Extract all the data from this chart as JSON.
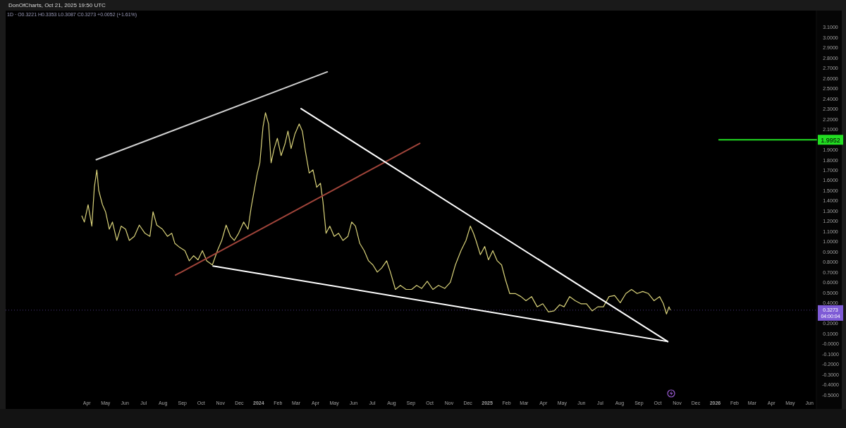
{
  "chart_data": {
    "type": "line",
    "title": "1D · O0.3221 H0.3353 L0.3087 C0.3273 +0.0052 (+1.61%)",
    "subtitle": "DonOfCharts, Oct 21, 2025 19:50 UTC",
    "annotations": [
      "04:00:04"
    ],
    "xlim": [
      "2022-11-22",
      "2026-06-12"
    ],
    "xticks": [
      {
        "value": "2023-04-01",
        "label": "Apr"
      },
      {
        "value": "2023-05-01",
        "label": "May"
      },
      {
        "value": "2023-06-01",
        "label": "Jun"
      },
      {
        "value": "2023-07-01",
        "label": "Jul"
      },
      {
        "value": "2023-08-01",
        "label": "Aug"
      },
      {
        "value": "2023-09-01",
        "label": "Sep"
      },
      {
        "value": "2023-10-01",
        "label": "Oct"
      },
      {
        "value": "2023-11-01",
        "label": "Nov"
      },
      {
        "value": "2023-12-01",
        "label": "Dec"
      },
      {
        "value": "2024-01-01",
        "label": "2024"
      },
      {
        "value": "2024-02-01",
        "label": "Feb"
      },
      {
        "value": "2024-03-01",
        "label": "Mar"
      },
      {
        "value": "2024-04-01",
        "label": "Apr"
      },
      {
        "value": "2024-05-01",
        "label": "May"
      },
      {
        "value": "2024-06-01",
        "label": "Jun"
      },
      {
        "value": "2024-07-01",
        "label": "Jul"
      },
      {
        "value": "2024-08-01",
        "label": "Aug"
      },
      {
        "value": "2024-09-01",
        "label": "Sep"
      },
      {
        "value": "2024-10-01",
        "label": "Oct"
      },
      {
        "value": "2024-11-01",
        "label": "Nov"
      },
      {
        "value": "2024-12-01",
        "label": "Dec"
      },
      {
        "value": "2025-01-01",
        "label": "2025"
      },
      {
        "value": "2025-02-01",
        "label": "Feb"
      },
      {
        "value": "2025-03-01",
        "label": "Mar"
      },
      {
        "value": "2025-04-01",
        "label": "Apr"
      },
      {
        "value": "2025-05-01",
        "label": "May"
      },
      {
        "value": "2025-06-01",
        "label": "Jun"
      },
      {
        "value": "2025-07-01",
        "label": "Jul"
      },
      {
        "value": "2025-08-01",
        "label": "Aug"
      },
      {
        "value": "2025-09-01",
        "label": "Sep"
      },
      {
        "value": "2025-10-01",
        "label": "Oct"
      },
      {
        "value": "2025-11-01",
        "label": "Nov"
      },
      {
        "value": "2025-12-01",
        "label": "Dec"
      },
      {
        "value": "2026-01-01",
        "label": "2026"
      },
      {
        "value": "2026-02-01",
        "label": "Feb"
      },
      {
        "value": "2026-03-01",
        "label": "Mar"
      },
      {
        "value": "2026-04-01",
        "label": "Apr"
      },
      {
        "value": "2026-05-01",
        "label": "May"
      },
      {
        "value": "2026-06-01",
        "label": "Jun"
      }
    ],
    "ylim": [
      -0.64,
      3.26
    ],
    "yticks": [
      {
        "value": 3.1,
        "label": "3.1000"
      },
      {
        "value": 3.0,
        "label": "3.0000"
      },
      {
        "value": 2.9,
        "label": "2.9000"
      },
      {
        "value": 2.8,
        "label": "2.8000"
      },
      {
        "value": 2.7,
        "label": "2.7000"
      },
      {
        "value": 2.6,
        "label": "2.6000"
      },
      {
        "value": 2.5,
        "label": "2.5000"
      },
      {
        "value": 2.4,
        "label": "2.4000"
      },
      {
        "value": 2.3,
        "label": "2.3000"
      },
      {
        "value": 2.2,
        "label": "2.2000"
      },
      {
        "value": 2.1,
        "label": "2.1000"
      },
      {
        "value": 1.9,
        "label": "1.9000"
      },
      {
        "value": 1.8,
        "label": "1.8000"
      },
      {
        "value": 1.7,
        "label": "1.7000"
      },
      {
        "value": 1.6,
        "label": "1.6000"
      },
      {
        "value": 1.5,
        "label": "1.5000"
      },
      {
        "value": 1.4,
        "label": "1.4000"
      },
      {
        "value": 1.3,
        "label": "1.3000"
      },
      {
        "value": 1.2,
        "label": "1.2000"
      },
      {
        "value": 1.1,
        "label": "1.1000"
      },
      {
        "value": 1.0,
        "label": "1.0000"
      },
      {
        "value": 0.9,
        "label": "0.9000"
      },
      {
        "value": 0.8,
        "label": "0.8000"
      },
      {
        "value": 0.7,
        "label": "0.7000"
      },
      {
        "value": 0.6,
        "label": "0.6000"
      },
      {
        "value": 0.5,
        "label": "0.5000"
      },
      {
        "value": 0.4,
        "label": "0.4000"
      },
      {
        "value": 0.2,
        "label": "0.2000"
      },
      {
        "value": 0.1,
        "label": "0.1000"
      },
      {
        "value": 0,
        "label": "-0.0000"
      },
      {
        "value": -0.1,
        "label": "-0.1000"
      },
      {
        "value": -0.2,
        "label": "-0.2000"
      },
      {
        "value": -0.3,
        "label": "-0.3000"
      },
      {
        "value": -0.4,
        "label": "-0.4000"
      },
      {
        "value": -0.5,
        "label": "-0.5000"
      }
    ],
    "ref_lines": [
      {
        "axis": "y",
        "value": 0.3273,
        "label": "0.3273",
        "color": "#7e5bd6",
        "line_style": "dotted"
      }
    ],
    "series": [
      {
        "color": "#d9d27a",
        "x": [
          "2023-03-24",
          "2023-03-28",
          "2023-04-03",
          "2023-04-09",
          "2023-04-13",
          "2023-04-17",
          "2023-04-20",
          "2023-04-26",
          "2023-05-01",
          "2023-05-07",
          "2023-05-12",
          "2023-05-19",
          "2023-05-26",
          "2023-06-02",
          "2023-06-08",
          "2023-06-16",
          "2023-06-24",
          "2023-07-03",
          "2023-07-11",
          "2023-07-16",
          "2023-07-22",
          "2023-07-31",
          "2023-08-08",
          "2023-08-15",
          "2023-08-20",
          "2023-08-28",
          "2023-09-05",
          "2023-09-12",
          "2023-09-19",
          "2023-09-26",
          "2023-10-03",
          "2023-10-10",
          "2023-10-19",
          "2023-10-27",
          "2023-11-03",
          "2023-11-10",
          "2023-11-17",
          "2023-11-23",
          "2023-11-30",
          "2023-12-08",
          "2023-12-15",
          "2023-12-20",
          "2023-12-25",
          "2023-12-30",
          "2024-01-03",
          "2024-01-08",
          "2024-01-12",
          "2024-01-17",
          "2024-01-21",
          "2024-01-26",
          "2024-01-31",
          "2024-02-06",
          "2024-02-12",
          "2024-02-17",
          "2024-02-22",
          "2024-02-28",
          "2024-03-06",
          "2024-03-11",
          "2024-03-16",
          "2024-03-22",
          "2024-03-28",
          "2024-04-03",
          "2024-04-09",
          "2024-04-13",
          "2024-04-18",
          "2024-04-24",
          "2024-05-01",
          "2024-05-08",
          "2024-05-15",
          "2024-05-23",
          "2024-05-29",
          "2024-06-04",
          "2024-06-11",
          "2024-06-18",
          "2024-06-25",
          "2024-07-02",
          "2024-07-09",
          "2024-07-16",
          "2024-07-24",
          "2024-07-30",
          "2024-08-07",
          "2024-08-15",
          "2024-08-24",
          "2024-09-02",
          "2024-09-10",
          "2024-09-18",
          "2024-09-27",
          "2024-10-06",
          "2024-10-15",
          "2024-10-25",
          "2024-11-03",
          "2024-11-11",
          "2024-11-20",
          "2024-11-28",
          "2024-12-05",
          "2024-12-10",
          "2024-12-14",
          "2024-12-21",
          "2024-12-28",
          "2025-01-03",
          "2025-01-10",
          "2025-01-17",
          "2025-01-24",
          "2025-01-30",
          "2025-02-06",
          "2025-02-15",
          "2025-02-24",
          "2025-03-04",
          "2025-03-13",
          "2025-03-22",
          "2025-03-31",
          "2025-04-09",
          "2025-04-18",
          "2025-04-27",
          "2025-05-04",
          "2025-05-13",
          "2025-05-22",
          "2025-05-31",
          "2025-06-09",
          "2025-06-18",
          "2025-06-27",
          "2025-07-06",
          "2025-07-15",
          "2025-07-24",
          "2025-08-02",
          "2025-08-11",
          "2025-08-20",
          "2025-08-29",
          "2025-09-07",
          "2025-09-16",
          "2025-09-25",
          "2025-10-04",
          "2025-10-10",
          "2025-10-15",
          "2025-10-19",
          "2025-10-21"
        ],
        "values": [
          1.25,
          1.19,
          1.36,
          1.15,
          1.53,
          1.7,
          1.5,
          1.36,
          1.29,
          1.12,
          1.19,
          1.01,
          1.15,
          1.12,
          1.01,
          1.05,
          1.16,
          1.08,
          1.05,
          1.29,
          1.16,
          1.12,
          1.05,
          1.08,
          0.98,
          0.94,
          0.91,
          0.81,
          0.86,
          0.82,
          0.91,
          0.81,
          0.77,
          0.91,
          1.01,
          1.16,
          1.05,
          1.01,
          1.08,
          1.19,
          1.12,
          1.33,
          1.5,
          1.67,
          1.77,
          2.12,
          2.26,
          2.15,
          1.77,
          1.91,
          2.01,
          1.84,
          1.95,
          2.08,
          1.91,
          2.05,
          2.15,
          2.08,
          1.88,
          1.67,
          1.7,
          1.53,
          1.57,
          1.39,
          1.08,
          1.15,
          1.05,
          1.08,
          1.01,
          1.05,
          1.19,
          1.15,
          0.98,
          0.91,
          0.81,
          0.77,
          0.7,
          0.74,
          0.81,
          0.7,
          0.53,
          0.57,
          0.53,
          0.53,
          0.57,
          0.54,
          0.61,
          0.53,
          0.57,
          0.54,
          0.6,
          0.77,
          0.91,
          1.01,
          1.15,
          1.08,
          1.01,
          0.87,
          0.95,
          0.82,
          0.91,
          0.81,
          0.77,
          0.63,
          0.49,
          0.49,
          0.46,
          0.42,
          0.46,
          0.36,
          0.39,
          0.31,
          0.32,
          0.38,
          0.36,
          0.46,
          0.42,
          0.39,
          0.39,
          0.32,
          0.36,
          0.36,
          0.46,
          0.47,
          0.4,
          0.49,
          0.53,
          0.49,
          0.51,
          0.49,
          0.42,
          0.46,
          0.39,
          0.29,
          0.36,
          0.33
        ]
      },
      {
        "color": "#cfcfcf",
        "x": [
          "2023-04-16",
          "2024-04-20"
        ],
        "values": [
          1.8,
          2.66
        ]
      },
      {
        "color": "#a0443a",
        "x": [
          "2023-08-21",
          "2024-09-15"
        ],
        "values": [
          0.67,
          1.96
        ]
      },
      {
        "color": "#ffffff",
        "x": [
          "2024-03-09",
          "2025-10-17"
        ],
        "values": [
          2.3,
          0.02
        ]
      },
      {
        "color": "#ffffff",
        "x": [
          "2023-10-20",
          "2025-10-17"
        ],
        "values": [
          0.76,
          0.02
        ]
      },
      {
        "color": "#22dd22",
        "x": [
          "2026-01-07",
          "2026-06-12"
        ],
        "values": [
          1.9952,
          1.9952
        ],
        "value_labels": [
          null,
          "1.9952"
        ]
      }
    ]
  }
}
